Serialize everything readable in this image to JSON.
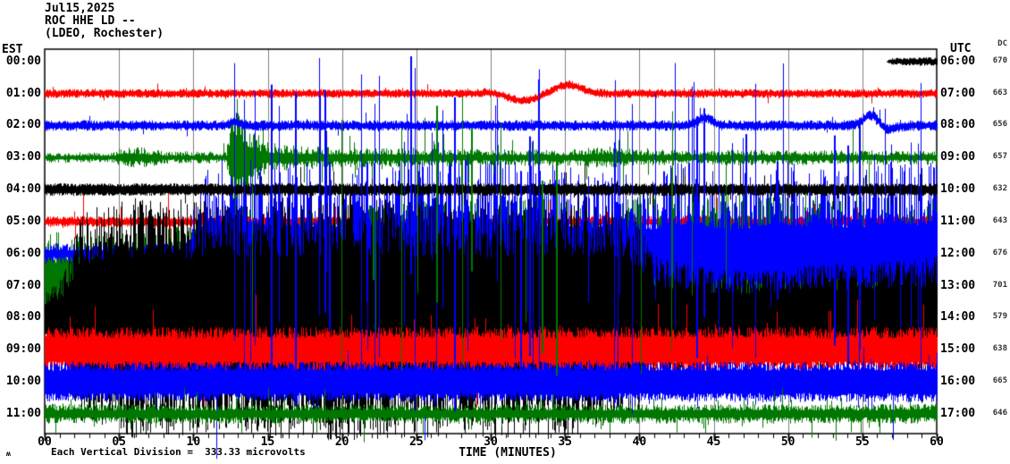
{
  "title": {
    "date": "Jul15,2025",
    "station": "ROC HHE LD --",
    "network": "(LDEO, Rochester)"
  },
  "axes": {
    "left_header": "EST",
    "right_header": "UTC",
    "dc_header": "DC"
  },
  "x_axis": {
    "ticks": [
      "00",
      "05",
      "10",
      "15",
      "20",
      "25",
      "30",
      "35",
      "40",
      "45",
      "50",
      "55",
      "60"
    ],
    "label": "TIME (MINUTES)"
  },
  "footer": {
    "mark": "ʍ",
    "scale_text": "Each Vertical Division =  333.33 microvolts"
  },
  "chart_data": {
    "type": "seismogram-helicorder",
    "title": "ROC HHE LD -- (LDEO, Rochester) Jul15,2025",
    "x_minutes_range": [
      0,
      60
    ],
    "minutes_per_line": 60,
    "grid_interval_min": 5,
    "grid_color": "#808080",
    "colors": {
      "black": "#000000",
      "red": "#ff0000",
      "blue": "#0000ff",
      "green": "#007800"
    },
    "rows": [
      {
        "est": "00:00",
        "utc": "06:00",
        "dc": 670,
        "color": "black",
        "fill": 0.45,
        "exp": 1.0,
        "amp": [
          [
            0,
            0
          ],
          [
            56.6,
            0
          ],
          [
            56.9,
            4
          ],
          [
            60,
            5
          ]
        ],
        "spike": [
          0.03,
          1.5
        ],
        "win": [
          57,
          60
        ]
      },
      {
        "est": "01:00",
        "utc": "07:00",
        "dc": 663,
        "color": "red",
        "fill": 0.4,
        "exp": 1.2,
        "amp": [
          [
            0,
            5
          ],
          [
            60,
            5
          ]
        ],
        "spike": [
          0.03,
          1.8
        ],
        "win": [
          0,
          60
        ],
        "bumps": [
          [
            30.4,
            0.8,
            -3
          ],
          [
            32,
            1.2,
            8
          ],
          [
            35.1,
            0.9,
            -10
          ]
        ]
      },
      {
        "est": "02:00",
        "utc": "08:00",
        "dc": 656,
        "color": "blue",
        "fill": 0.4,
        "exp": 1.2,
        "amp": [
          [
            0,
            6
          ],
          [
            60,
            6
          ]
        ],
        "spike": [
          0.03,
          1.8
        ],
        "win": [
          0,
          60
        ],
        "bumps": [
          [
            12.8,
            0.3,
            -4
          ],
          [
            44.4,
            0.45,
            -9
          ],
          [
            55.6,
            0.5,
            -13
          ],
          [
            56.5,
            0.6,
            5
          ]
        ]
      },
      {
        "est": "03:00",
        "utc": "09:00",
        "dc": 657,
        "color": "green",
        "fill": 0.3,
        "exp": 1.6,
        "amp": [
          [
            0,
            6
          ],
          [
            4.6,
            6
          ],
          [
            5.3,
            13
          ],
          [
            6.8,
            11
          ],
          [
            8,
            7
          ],
          [
            12.2,
            7
          ],
          [
            12.6,
            60
          ],
          [
            13,
            85
          ],
          [
            13.6,
            40
          ],
          [
            14.8,
            18
          ],
          [
            17,
            13
          ],
          [
            27,
            10
          ],
          [
            35,
            9
          ],
          [
            38,
            13
          ],
          [
            40,
            9
          ],
          [
            60,
            8
          ]
        ],
        "spike": [
          0.08,
          3.0
        ],
        "win": [
          12,
          42
        ]
      },
      {
        "est": "04:00",
        "utc": "10:00",
        "dc": 632,
        "color": "black",
        "fill": 0.5,
        "exp": 1.0,
        "amp": [
          [
            0,
            7
          ],
          [
            60,
            7
          ]
        ],
        "spike": [
          0.05,
          3.5
        ],
        "win": [
          9,
          60
        ]
      },
      {
        "est": "05:00",
        "utc": "11:00",
        "dc": 643,
        "color": "red",
        "fill": 0.4,
        "exp": 1.3,
        "amp": [
          [
            0,
            6
          ],
          [
            60,
            7
          ]
        ],
        "spike": [
          0.05,
          4.5
        ],
        "win": [
          0,
          60
        ]
      },
      {
        "est": "06:00",
        "utc": "12:00",
        "dc": 676,
        "color": "blue",
        "fill": 0.3,
        "exp": 1.9,
        "amp": [
          [
            0,
            12
          ],
          [
            9.4,
            13
          ],
          [
            10.2,
            85
          ],
          [
            12.5,
            125
          ],
          [
            15,
            105
          ],
          [
            20,
            100
          ],
          [
            27,
            130
          ],
          [
            33,
            105
          ],
          [
            38,
            95
          ],
          [
            41,
            90
          ],
          [
            43.5,
            115
          ],
          [
            46,
            85
          ],
          [
            49,
            110
          ],
          [
            53,
            95
          ],
          [
            57,
            105
          ],
          [
            60,
            110
          ]
        ],
        "spike": [
          0.05,
          1.5
        ],
        "win": [
          10,
          60
        ]
      },
      {
        "est": "07:00",
        "utc": "13:00",
        "dc": 701,
        "color": "green",
        "fill": 0.42,
        "exp": 1.2,
        "up": 1.0,
        "dn": 0.6,
        "amp": [
          [
            0,
            62
          ],
          [
            5,
            58
          ],
          [
            10,
            72
          ],
          [
            13,
            95
          ],
          [
            18,
            85
          ],
          [
            25,
            95
          ],
          [
            32,
            100
          ],
          [
            38,
            95
          ],
          [
            42,
            110
          ],
          [
            47,
            105
          ],
          [
            52,
            112
          ],
          [
            57,
            105
          ],
          [
            60,
            108
          ]
        ],
        "spike": [
          0.03,
          1.4
        ],
        "win": [
          10,
          60
        ]
      },
      {
        "est": "08:00",
        "utc": "14:00",
        "dc": 579,
        "color": "black",
        "fill": 0.5,
        "exp": 1.0,
        "amp": [
          [
            0,
            28
          ],
          [
            1.2,
            45
          ],
          [
            2.5,
            120
          ],
          [
            6,
            135
          ],
          [
            12,
            130
          ],
          [
            20,
            140
          ],
          [
            28,
            132
          ],
          [
            36,
            138
          ],
          [
            39.5,
            120
          ],
          [
            41,
            70
          ],
          [
            44,
            58
          ],
          [
            48,
            52
          ],
          [
            52,
            60
          ],
          [
            56,
            62
          ],
          [
            60,
            72
          ]
        ],
        "spike": [
          0.02,
          1.2
        ],
        "win": [
          0,
          60
        ]
      },
      {
        "est": "09:00",
        "utc": "15:00",
        "dc": 638,
        "color": "red",
        "fill": 0.5,
        "exp": 1.1,
        "amp": [
          [
            0,
            26
          ],
          [
            60,
            26
          ]
        ],
        "spike": [
          0.05,
          1.8
        ],
        "win": [
          0,
          60
        ]
      },
      {
        "est": "10:00",
        "utc": "16:00",
        "dc": 665,
        "color": "blue",
        "fill": 0.55,
        "exp": 1.0,
        "amp": [
          [
            0,
            22
          ],
          [
            60,
            23
          ]
        ],
        "spike": [
          0.04,
          1.5
        ],
        "win": [
          0,
          60
        ]
      },
      {
        "est": "11:00",
        "utc": "17:00",
        "dc": 646,
        "color": "green",
        "fill": 0.35,
        "exp": 1.5,
        "amp": [
          [
            0,
            11
          ],
          [
            60,
            11
          ]
        ],
        "spike": [
          0.1,
          2.3
        ],
        "win": [
          0,
          60
        ]
      }
    ],
    "draw_order": [
      5,
      7,
      6,
      8,
      9,
      10,
      11,
      3,
      2,
      1,
      4,
      0
    ],
    "overlay_spikes": [
      {
        "color": "blue",
        "seed": 4021,
        "count": 60,
        "range": [
          10,
          60
        ],
        "top": [
          62,
          200
        ],
        "bottom": [
          290,
          465
        ]
      },
      {
        "color": "green",
        "seed": 7777,
        "count": 18,
        "range": [
          12.5,
          47
        ],
        "top": [
          105,
          250
        ],
        "bottom": [
          300,
          440
        ]
      }
    ]
  }
}
